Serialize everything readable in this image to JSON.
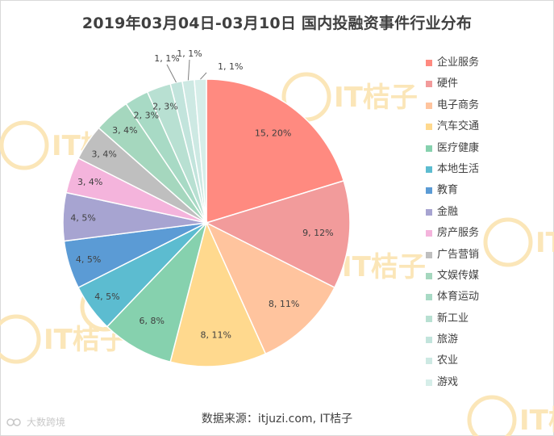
{
  "chart_data": {
    "type": "pie",
    "title": "2019年03月04日-03月10日 国内投融资事件行业分布",
    "categories": [
      "企业服务",
      "硬件",
      "电子商务",
      "汽车交通",
      "医疗健康",
      "本地生活",
      "教育",
      "金融",
      "房产服务",
      "广告营销",
      "文娱传媒",
      "体育运动",
      "新工业",
      "旅游",
      "农业",
      "游戏"
    ],
    "values": [
      15,
      9,
      8,
      8,
      6,
      4,
      4,
      4,
      3,
      3,
      3,
      2,
      2,
      1,
      1,
      1
    ],
    "data_labels": [
      "15, 20%",
      "9, 12%",
      "8, 11%",
      "8, 11%",
      "6, 8%",
      "4, 5%",
      "4, 5%",
      "4, 5%",
      "3, 4%",
      "3, 4%",
      "3, 4%",
      "2, 3%",
      "2, 3%",
      "1, 1%",
      "1, 1%",
      "1, 1%"
    ],
    "colors": [
      "#ff8a80",
      "#f29b9b",
      "#ffc49e",
      "#ffd98e",
      "#86d1ae",
      "#5cbcd0",
      "#5b9bd5",
      "#a7a4d1",
      "#f4b4dc",
      "#bfbfbf",
      "#a5d7be",
      "#a8dac5",
      "#b8e0d2",
      "#c2e4dc",
      "#cde9e3",
      "#d6eee9"
    ],
    "legend_position": "right"
  },
  "footer": {
    "source": "数据来源：itjuzi.com, IT桔子",
    "brand": "大数跨境"
  },
  "watermark": {
    "text": "IT桔子",
    "color": "#fbe6b8"
  }
}
